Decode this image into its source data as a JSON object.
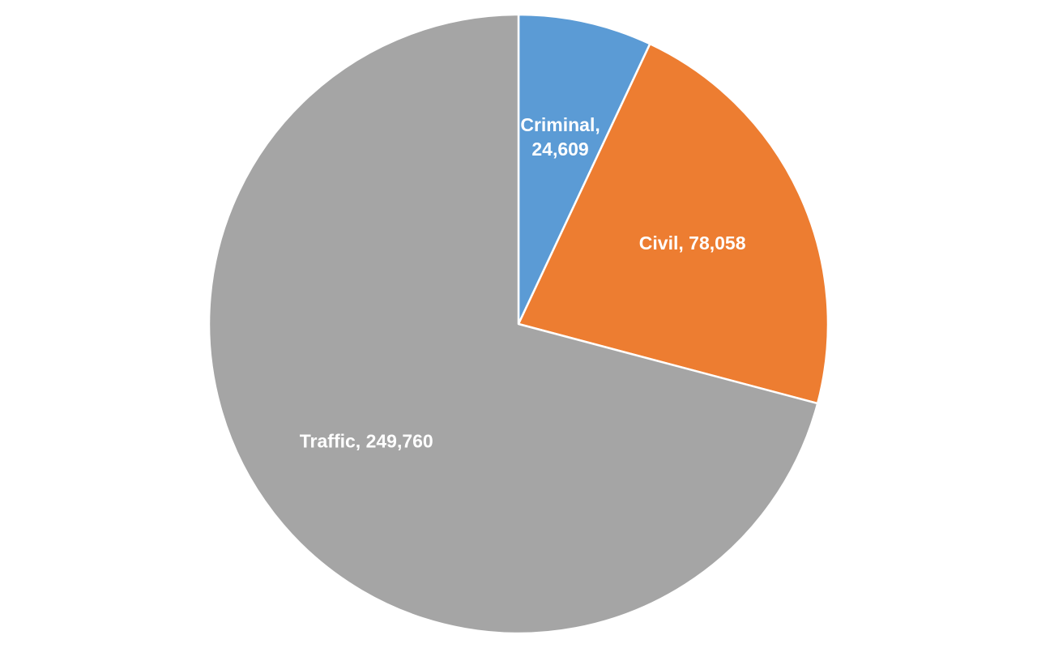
{
  "chart_data": {
    "type": "pie",
    "title": "",
    "start_angle_deg": 0,
    "direction": "clockwise",
    "slices": [
      {
        "name": "Criminal",
        "value": 24609,
        "value_label": "24,609",
        "label_lines": [
          "Criminal,",
          "24,609"
        ],
        "color": "#5B9BD5"
      },
      {
        "name": "Civil",
        "value": 78058,
        "value_label": "78,058",
        "label_lines": [
          "Civil,  78,058"
        ],
        "color": "#ED7D31"
      },
      {
        "name": "Traffic",
        "value": 249760,
        "value_label": "249,760",
        "label_lines": [
          "Traffic, 249,760"
        ],
        "color": "#A5A5A5"
      }
    ],
    "slice_border_color": "#FFFFFF",
    "label_color": "#FFFFFF",
    "legend": "none",
    "grid": false
  }
}
